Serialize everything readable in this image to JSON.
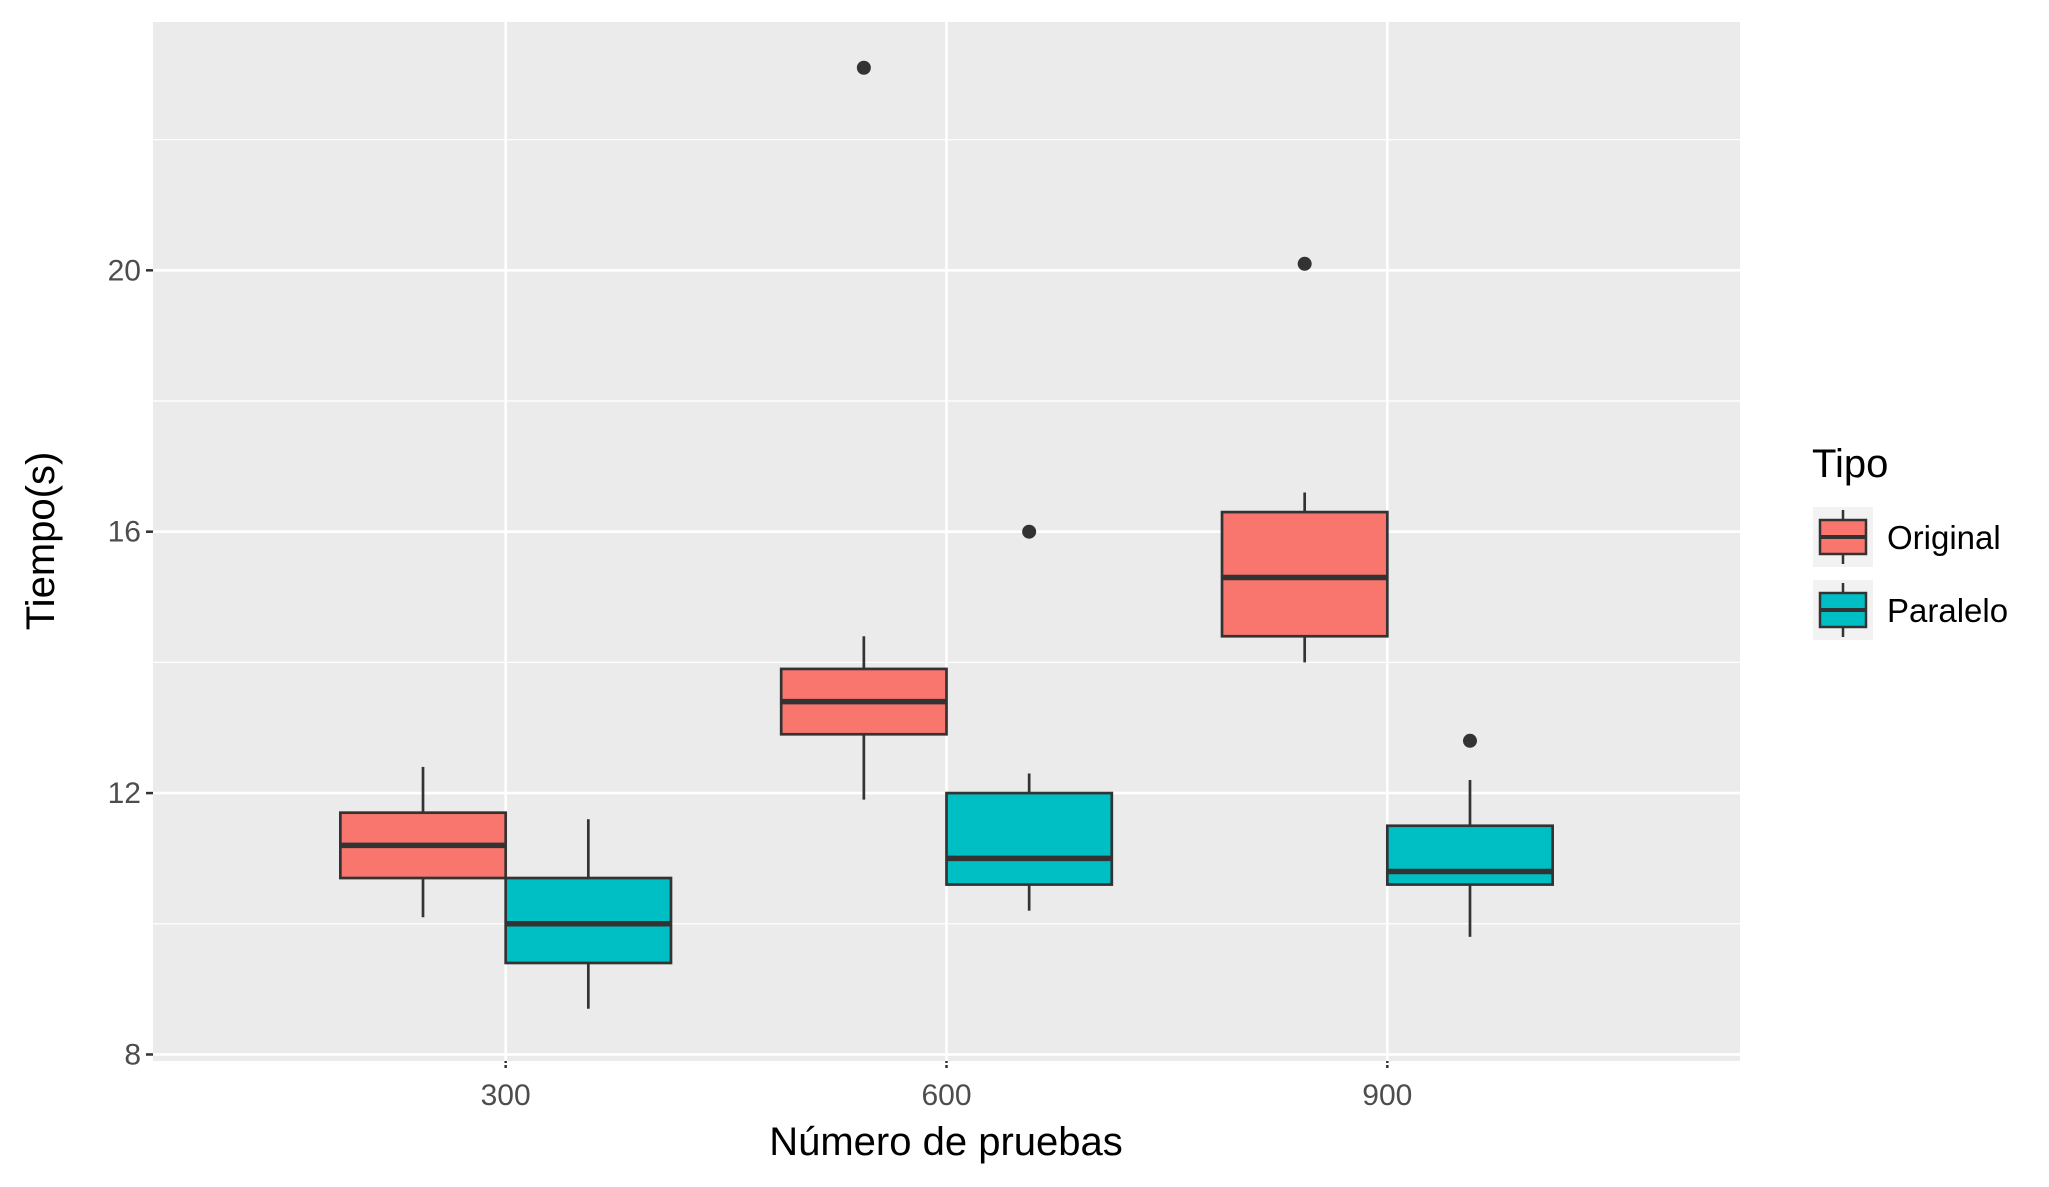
{
  "chart_data": {
    "type": "boxplot",
    "title": "",
    "xlabel": "Número de pruebas",
    "ylabel": "Tiempo(s)",
    "categories": [
      "300",
      "600",
      "900"
    ],
    "ylim": [
      7.9,
      23.8
    ],
    "yticks": [
      "8",
      "12",
      "16",
      "20"
    ],
    "grid": true,
    "legend_position": "right",
    "legend": {
      "title": "Tipo"
    },
    "series": [
      {
        "name": "Original",
        "color": "#F8766D",
        "boxes": [
          {
            "category": "300",
            "whisker_low": 10.1,
            "q1": 10.7,
            "median": 11.2,
            "q3": 11.7,
            "whisker_high": 12.4,
            "outliers": []
          },
          {
            "category": "600",
            "whisker_low": 11.9,
            "q1": 12.9,
            "median": 13.4,
            "q3": 13.9,
            "whisker_high": 14.4,
            "outliers": [
              23.1
            ]
          },
          {
            "category": "900",
            "whisker_low": 14.0,
            "q1": 14.4,
            "median": 15.3,
            "q3": 16.3,
            "whisker_high": 16.6,
            "outliers": [
              20.1
            ]
          }
        ]
      },
      {
        "name": "Paralelo",
        "color": "#00BFC4",
        "boxes": [
          {
            "category": "300",
            "whisker_low": 8.7,
            "q1": 9.4,
            "median": 10.0,
            "q3": 10.7,
            "whisker_high": 11.6,
            "outliers": []
          },
          {
            "category": "600",
            "whisker_low": 10.2,
            "q1": 10.6,
            "median": 11.0,
            "q3": 12.0,
            "whisker_high": 12.3,
            "outliers": [
              16.0
            ]
          },
          {
            "category": "900",
            "whisker_low": 9.8,
            "q1": 10.6,
            "median": 10.8,
            "q3": 11.5,
            "whisker_high": 12.2,
            "outliers": [
              12.8
            ]
          }
        ]
      }
    ]
  }
}
